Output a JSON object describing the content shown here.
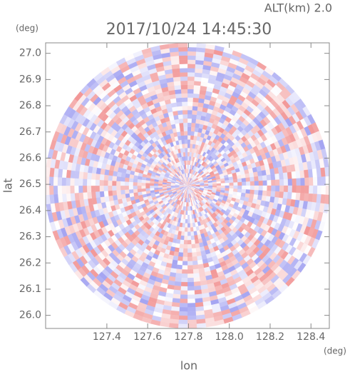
{
  "chart_data": {
    "type": "radar-ppi",
    "title": "2017/10/24 14:45:30",
    "altitude_label": "ALT(km)  2.0",
    "x_label": "lon",
    "x_unit": "(deg)",
    "y_label": "lat",
    "y_unit": "(deg)",
    "xlim": [
      127.1,
      128.49
    ],
    "ylim": [
      25.95,
      27.04
    ],
    "xticks": [
      127.4,
      127.6,
      127.8,
      {
        "value": 128.0,
        "label": "128.0"
      },
      128.2,
      128.4
    ],
    "yticks": [
      {
        "value": 26.0,
        "label": "26.0"
      },
      26.1,
      26.2,
      26.3,
      26.4,
      26.5,
      26.6,
      26.7,
      26.8,
      26.9,
      {
        "value": 27.0,
        "label": "27.0"
      }
    ],
    "colors": {
      "positive": "#f08c8c",
      "negative": "#9a9af0"
    }
  }
}
